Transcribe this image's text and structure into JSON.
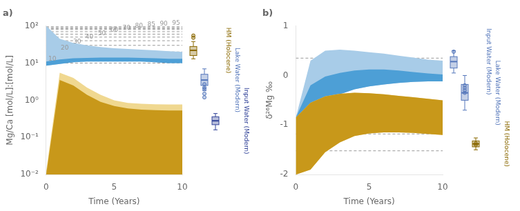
{
  "chart_data": [
    {
      "type": "area",
      "title": "a)",
      "xlabel": "Time (Years)",
      "ylabel": "Mg/Ca [mol/L]:[mol/L]",
      "log": "y",
      "grid": false,
      "x": [
        0,
        1,
        2,
        3,
        4,
        5,
        6,
        7,
        8,
        9,
        10
      ],
      "xlim": [
        0,
        10
      ],
      "xticks": [
        0,
        5,
        10
      ],
      "ylim": [
        0.01,
        100
      ],
      "yticks": [
        {
          "value": 0.01,
          "label": "10⁻²"
        },
        {
          "value": 0.1,
          "label": "10⁻¹"
        },
        {
          "value": 1,
          "label": "10⁰"
        },
        {
          "value": 10,
          "label": "10¹"
        },
        {
          "value": 100,
          "label": "10²"
        }
      ],
      "series": [
        {
          "color": "#a8cce8",
          "lower": [
            8.5,
            9.5,
            10.5,
            11,
            11,
            11,
            11,
            11,
            10.5,
            10,
            10
          ],
          "upper": [
            100,
            45,
            35,
            30,
            27,
            25,
            24,
            23,
            22,
            21,
            20
          ]
        },
        {
          "color": "#4d9fd6",
          "lower": [
            8.5,
            9.5,
            10.5,
            11,
            11,
            11,
            11,
            11,
            10.5,
            10,
            10
          ],
          "upper": [
            11,
            12.5,
            13.5,
            13.8,
            14,
            14,
            14,
            13.8,
            13.5,
            13,
            13
          ]
        },
        {
          "color": "#f0d890",
          "lower": [
            0.01,
            0.01,
            0.01,
            0.01,
            0.01,
            0.01,
            0.01,
            0.01,
            0.01,
            0.01,
            0.01
          ],
          "upper": [
            0.012,
            5.5,
            4.0,
            2.2,
            1.4,
            1.0,
            0.85,
            0.8,
            0.78,
            0.77,
            0.77
          ]
        },
        {
          "color": "#c8981a",
          "lower": [
            0.01,
            0.01,
            0.01,
            0.01,
            0.01,
            0.01,
            0.01,
            0.01,
            0.01,
            0.01,
            0.01
          ],
          "upper": [
            0.01,
            3.5,
            2.5,
            1.4,
            0.9,
            0.7,
            0.6,
            0.56,
            0.54,
            0.53,
            0.53
          ]
        }
      ],
      "reference_lines": [
        {
          "value": 10,
          "label": "10",
          "color": "#999999"
        },
        {
          "value": 20,
          "label": "20",
          "color": "#999999"
        },
        {
          "value": 30,
          "label": "30",
          "color": "#999999"
        },
        {
          "value": 40,
          "label": "40",
          "color": "#999999"
        },
        {
          "value": 50,
          "label": "50",
          "color": "#999999"
        },
        {
          "value": 60,
          "label": "60",
          "color": "#999999"
        },
        {
          "value": 70,
          "label": "70",
          "color": "#999999"
        },
        {
          "value": 80,
          "label": "80",
          "color": "#999999"
        },
        {
          "value": 85,
          "label": "85",
          "color": "#999999"
        },
        {
          "value": 90,
          "label": "90",
          "color": "#999999"
        },
        {
          "value": 95,
          "label": "95",
          "color": "#999999"
        }
      ],
      "boxplots": [
        {
          "name": "HM (Holocene)",
          "color": "#8a6800",
          "median": 22,
          "q1": 16,
          "q3": 28,
          "whislo": 13,
          "whishi": 38,
          "outliers": [
            48,
            55
          ]
        },
        {
          "name": "Lake Water (Modern)",
          "color": "#5577bb",
          "median": 3.5,
          "q1": 2.5,
          "q3": 5.0,
          "whislo": 1.8,
          "whishi": 7.0,
          "outliers": [
            1.2,
            1.5,
            2.0,
            2.2,
            2.7
          ]
        },
        {
          "name": "Input Water (Modern)",
          "color": "#334499",
          "median": 0.28,
          "q1": 0.22,
          "q3": 0.36,
          "whislo": 0.16,
          "whishi": 0.44,
          "outliers": []
        }
      ]
    },
    {
      "type": "area",
      "title": "b)",
      "xlabel": "Time (Years)",
      "ylabel": "δ²⁶Mg ‰",
      "grid": false,
      "x": [
        0,
        1,
        2,
        3,
        4,
        5,
        6,
        7,
        8,
        9,
        10
      ],
      "xlim": [
        0,
        10
      ],
      "xticks": [
        0,
        5,
        10
      ],
      "ylim": [
        -2,
        1
      ],
      "yticks": [
        -2,
        -1,
        0,
        1
      ],
      "series": [
        {
          "color": "#a8cce8",
          "lower": [
            -0.85,
            -0.7,
            -0.5,
            -0.38,
            -0.28,
            -0.22,
            -0.18,
            -0.15,
            -0.13,
            -0.12,
            -0.12
          ],
          "upper": [
            -0.85,
            0.3,
            0.5,
            0.52,
            0.5,
            0.47,
            0.44,
            0.4,
            0.36,
            0.32,
            0.3
          ]
        },
        {
          "color": "#4d9fd6",
          "lower": [
            -0.85,
            -0.7,
            -0.5,
            -0.38,
            -0.28,
            -0.22,
            -0.18,
            -0.15,
            -0.13,
            -0.12,
            -0.12
          ],
          "upper": [
            -0.85,
            -0.2,
            -0.02,
            0.05,
            0.1,
            0.12,
            0.12,
            0.1,
            0.07,
            0.04,
            0.02
          ]
        },
        {
          "color": "#f0d890",
          "lower": [
            -2.0,
            -1.9,
            -1.55,
            -1.35,
            -1.22,
            -1.17,
            -1.15,
            -1.15,
            -1.16,
            -1.18,
            -1.2
          ],
          "upper": [
            -0.85,
            -0.55,
            -0.42,
            -0.37,
            -0.35,
            -0.36,
            -0.38,
            -0.41,
            -0.44,
            -0.47,
            -0.5
          ]
        },
        {
          "color": "#c8981a",
          "lower": [
            -2.0,
            -1.9,
            -1.55,
            -1.35,
            -1.22,
            -1.17,
            -1.15,
            -1.15,
            -1.16,
            -1.18,
            -1.2
          ],
          "upper": [
            -0.85,
            -0.55,
            -0.42,
            -0.37,
            -0.35,
            -0.36,
            -0.38,
            -0.41,
            -0.44,
            -0.47,
            -0.5
          ]
        }
      ],
      "reference_lines": [
        {
          "value": 0.35,
          "color": "#999999"
        },
        {
          "value": -1.18,
          "color": "#999999"
        },
        {
          "value": -1.52,
          "color": "#999999"
        }
      ],
      "boxplots": [
        {
          "name": "Input Water (Modern)",
          "color": "#5577bb",
          "median": 0.28,
          "q1": 0.15,
          "q3": 0.38,
          "whislo": 0.05,
          "whishi": 0.5,
          "outliers": [
            0.48
          ]
        },
        {
          "name": "Lake Water (Modern)",
          "color": "#5577bb",
          "median": -0.35,
          "q1": -0.5,
          "q3": -0.18,
          "whislo": -0.7,
          "whishi": 0.0,
          "outliers": [
            -0.2,
            -0.25,
            -0.3,
            -0.35
          ]
        },
        {
          "name": "HM (Holocene)",
          "color": "#8a6800",
          "median": -1.38,
          "q1": -1.44,
          "q3": -1.32,
          "whislo": -1.5,
          "whishi": -1.26,
          "outliers": [
            -1.37,
            -1.4
          ]
        }
      ]
    }
  ]
}
